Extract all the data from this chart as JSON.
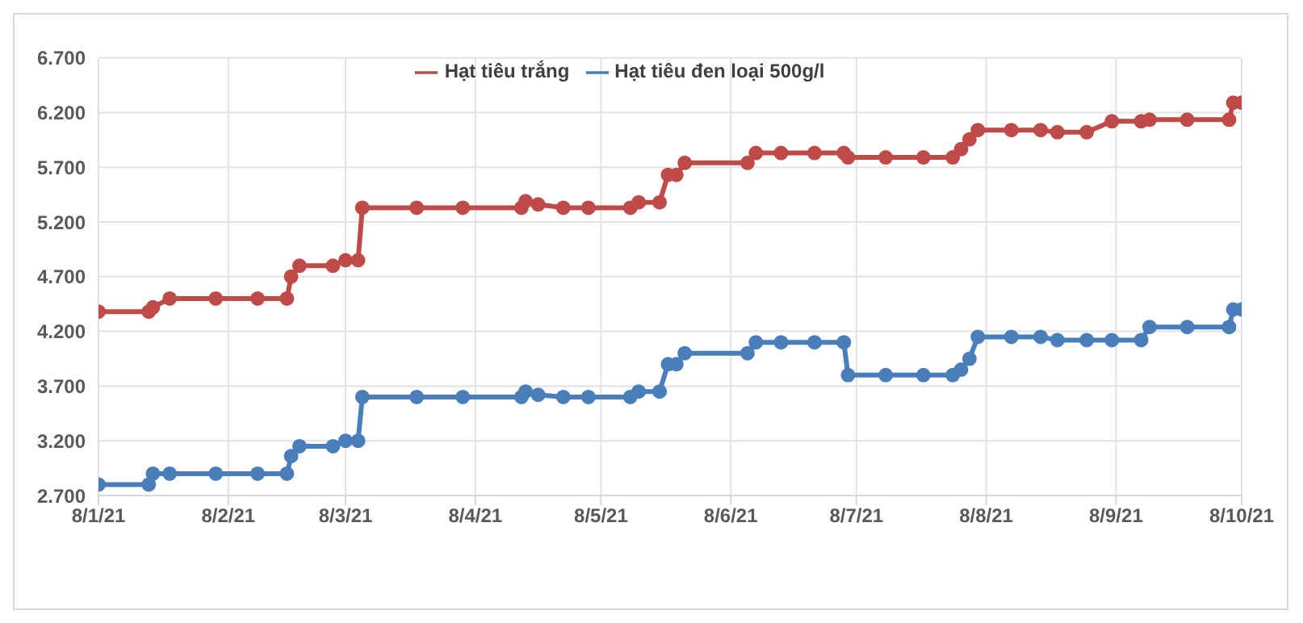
{
  "chart_data": {
    "type": "line",
    "x": [
      "2021-01-08",
      "2021-01-20",
      "2021-01-21",
      "2021-01-25",
      "2021-02-05",
      "2021-02-15",
      "2021-02-22",
      "2021-02-23",
      "2021-02-25",
      "2021-03-05",
      "2021-03-08",
      "2021-03-11",
      "2021-03-12",
      "2021-03-25",
      "2021-04-05",
      "2021-04-19",
      "2021-04-20",
      "2021-04-23",
      "2021-04-29",
      "2021-05-05",
      "2021-05-15",
      "2021-05-17",
      "2021-05-22",
      "2021-05-24",
      "2021-05-26",
      "2021-05-28",
      "2021-06-12",
      "2021-06-14",
      "2021-06-20",
      "2021-06-28",
      "2021-07-05",
      "2021-07-06",
      "2021-07-15",
      "2021-07-24",
      "2021-07-31",
      "2021-08-02",
      "2021-08-04",
      "2021-08-06",
      "2021-08-14",
      "2021-08-21",
      "2021-08-25",
      "2021-09-01",
      "2021-09-07",
      "2021-09-14",
      "2021-09-16",
      "2021-09-25",
      "2021-10-05",
      "2021-10-06",
      "2021-10-08"
    ],
    "series": [
      {
        "name": "Hạt tiêu đen loại 500g/l",
        "color": "#4a7ebb",
        "values": [
          2800,
          2800,
          2900,
          2900,
          2900,
          2900,
          2900,
          3060,
          3150,
          3150,
          3200,
          3200,
          3600,
          3600,
          3600,
          3600,
          3650,
          3620,
          3600,
          3600,
          3600,
          3650,
          3650,
          3900,
          3900,
          4000,
          4000,
          4100,
          4100,
          4100,
          4100,
          3800,
          3800,
          3800,
          3800,
          3850,
          3950,
          4150,
          4150,
          4150,
          4120,
          4120,
          4120,
          4120,
          4240,
          4240,
          4240,
          4400,
          4400
        ]
      },
      {
        "name": "Hạt tiêu trắng",
        "color": "#be4b48",
        "values": [
          4380,
          4380,
          4420,
          4500,
          4500,
          4500,
          4500,
          4700,
          4800,
          4800,
          4850,
          4850,
          5330,
          5330,
          5330,
          5330,
          5390,
          5360,
          5330,
          5330,
          5330,
          5380,
          5380,
          5630,
          5630,
          5740,
          5740,
          5830,
          5830,
          5830,
          5830,
          5790,
          5790,
          5790,
          5790,
          5865,
          5955,
          6040,
          6040,
          6040,
          6020,
          6020,
          6120,
          6120,
          6135,
          6135,
          6135,
          6290,
          6290
        ]
      }
    ],
    "xlim": [
      "2021-01-08",
      "2021-10-08"
    ],
    "xticks": [
      {
        "value": "2021-01-08",
        "label": "8/1/21"
      },
      {
        "value": "2021-02-08",
        "label": "8/2/21"
      },
      {
        "value": "2021-03-08",
        "label": "8/3/21"
      },
      {
        "value": "2021-04-08",
        "label": "8/4/21"
      },
      {
        "value": "2021-05-08",
        "label": "8/5/21"
      },
      {
        "value": "2021-06-08",
        "label": "8/6/21"
      },
      {
        "value": "2021-07-08",
        "label": "8/7/21"
      },
      {
        "value": "2021-08-08",
        "label": "8/8/21"
      },
      {
        "value": "2021-09-08",
        "label": "8/9/21"
      },
      {
        "value": "2021-10-08",
        "label": "8/10/21"
      }
    ],
    "ylim": [
      2700,
      6700
    ],
    "yticks": [
      {
        "value": 2700,
        "label": "2.700"
      },
      {
        "value": 3200,
        "label": "3.200"
      },
      {
        "value": 3700,
        "label": "3.700"
      },
      {
        "value": 4200,
        "label": "4.200"
      },
      {
        "value": 4700,
        "label": "4.700"
      },
      {
        "value": 5200,
        "label": "5.200"
      },
      {
        "value": 5700,
        "label": "5.700"
      },
      {
        "value": 6200,
        "label": "6.200"
      },
      {
        "value": 6700,
        "label": "6.700"
      }
    ],
    "grid": true,
    "legend": "top",
    "marker": "circle",
    "line_style": "solid"
  }
}
